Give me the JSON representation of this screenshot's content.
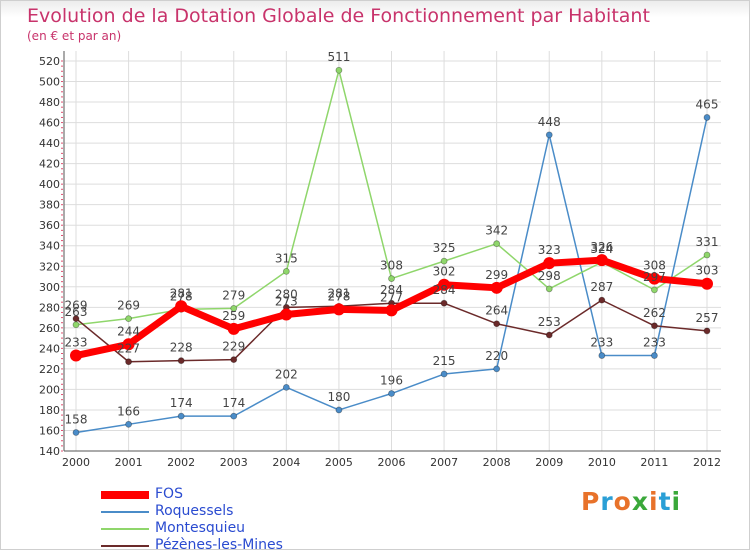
{
  "header": {
    "title": "Evolution de la Dotation Globale de Fonctionnement par Habitant",
    "subtitle": "(en € et par an)"
  },
  "logo": {
    "text": "Proxiti",
    "colors": [
      "#e8722a",
      "#2a9fd6",
      "#e8722a",
      "#3aa83a",
      "#e8722a",
      "#2a9fd6",
      "#3aa83a"
    ]
  },
  "chart_data": {
    "type": "line",
    "title": "Evolution de la Dotation Globale de Fonctionnement par Habitant",
    "subtitle": "(en € et par an)",
    "x": [
      "2000",
      "2001",
      "2002",
      "2003",
      "2004",
      "2005",
      "2006",
      "2007",
      "2008",
      "2009",
      "2010",
      "2011",
      "2012"
    ],
    "ylim": [
      140,
      520
    ],
    "yticks": [
      140,
      160,
      180,
      200,
      220,
      240,
      260,
      280,
      300,
      320,
      340,
      360,
      380,
      400,
      420,
      440,
      460,
      480,
      500,
      520
    ],
    "grid": true,
    "legend_position": "bottom-left",
    "series": [
      {
        "name": "Roquessels",
        "color": "#4a8cc8",
        "values": [
          158,
          166,
          174,
          174,
          202,
          180,
          196,
          215,
          220,
          448,
          233,
          233,
          465
        ]
      },
      {
        "name": "Montesquieu",
        "color": "#8fd66b",
        "values": [
          263,
          269,
          278,
          279,
          315,
          511,
          308,
          325,
          342,
          298,
          324,
          297,
          331
        ]
      },
      {
        "name": "Pézènes-les-Mines",
        "color": "#6b2a2a",
        "values": [
          269,
          227,
          228,
          229,
          280,
          281,
          284,
          284,
          264,
          253,
          287,
          262,
          257
        ]
      },
      {
        "name": "FOS",
        "color": "#ff0000",
        "values": [
          233,
          244,
          281,
          259,
          273,
          278,
          277,
          302,
          299,
          323,
          326,
          308,
          303
        ]
      }
    ],
    "legend_order": [
      "FOS",
      "Roquessels",
      "Montesquieu",
      "Pézènes-les-Mines"
    ]
  }
}
